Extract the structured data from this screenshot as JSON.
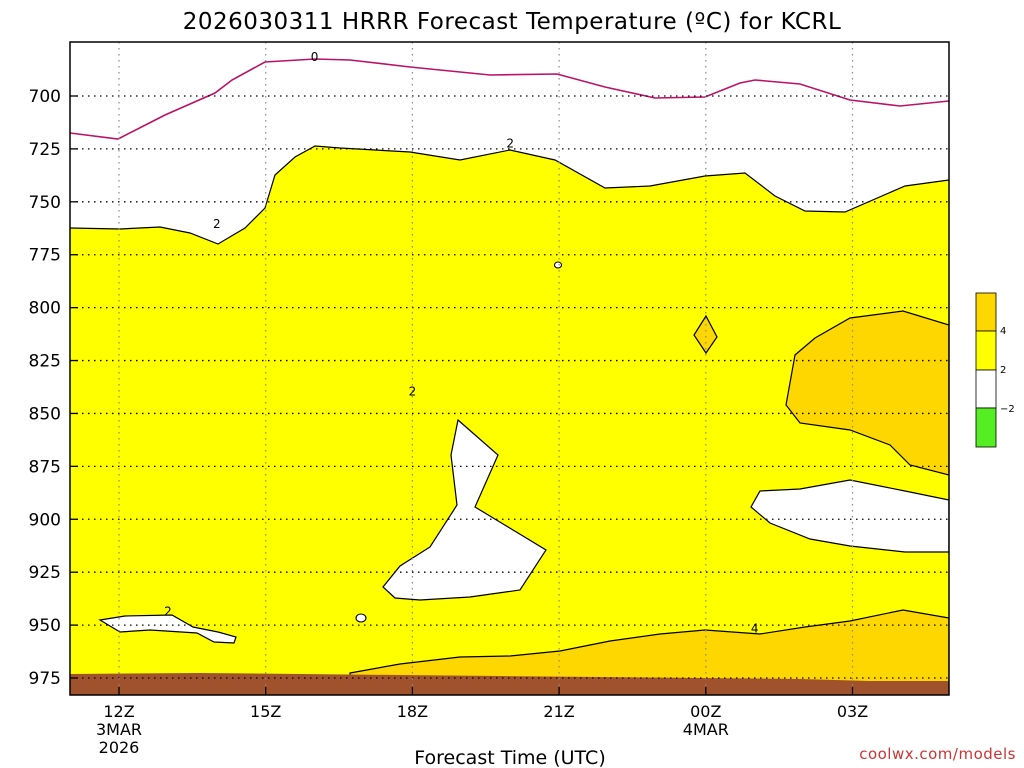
{
  "chart_data": {
    "type": "contour",
    "title": "2026030311 HRRR Forecast Temperature (ºC) for KCRL",
    "xlabel": "Forecast Time (UTC)",
    "ylabel": "",
    "y_axis": {
      "unit": "hPa",
      "inverted": true,
      "ticks": [
        700,
        725,
        750,
        775,
        800,
        825,
        850,
        875,
        900,
        925,
        950,
        975
      ],
      "range": [
        675,
        982
      ]
    },
    "x_axis": {
      "ticks": [
        {
          "label": "12Z",
          "sub1": "3MAR",
          "sub2": "2026",
          "hour": 0
        },
        {
          "label": "15Z",
          "sub1": "",
          "sub2": "",
          "hour": 3
        },
        {
          "label": "18Z",
          "sub1": "",
          "sub2": "",
          "hour": 6
        },
        {
          "label": "21Z",
          "sub1": "",
          "sub2": "",
          "hour": 9
        },
        {
          "label": "00Z",
          "sub1": "4MAR",
          "sub2": "",
          "hour": 12
        },
        {
          "label": "03Z",
          "sub1": "",
          "sub2": "",
          "hour": 15
        }
      ],
      "range": [
        -1,
        17.5
      ]
    },
    "grid": true,
    "contour_labels": [
      {
        "text": "0",
        "hour": 4.0,
        "p": 682
      },
      {
        "text": "2",
        "hour": 8.0,
        "p": 723
      },
      {
        "text": "2",
        "hour": 2.0,
        "p": 761
      },
      {
        "text": "2",
        "hour": 6.0,
        "p": 840
      },
      {
        "text": "2",
        "hour": 1.0,
        "p": 944
      },
      {
        "text": "4",
        "hour": 13.0,
        "p": 952
      }
    ],
    "colorbar": {
      "labels": [
        "4",
        "2",
        "−2"
      ],
      "colors": [
        "#ffd700",
        "#ffff00",
        "#ffffff",
        "#55ee22"
      ]
    },
    "colors": {
      "ground": "#a0522d",
      "zero_contour": "#bb1166",
      "warm": "#ffd700",
      "mild": "#ffff00"
    }
  },
  "credit": "coolwx.com/models"
}
